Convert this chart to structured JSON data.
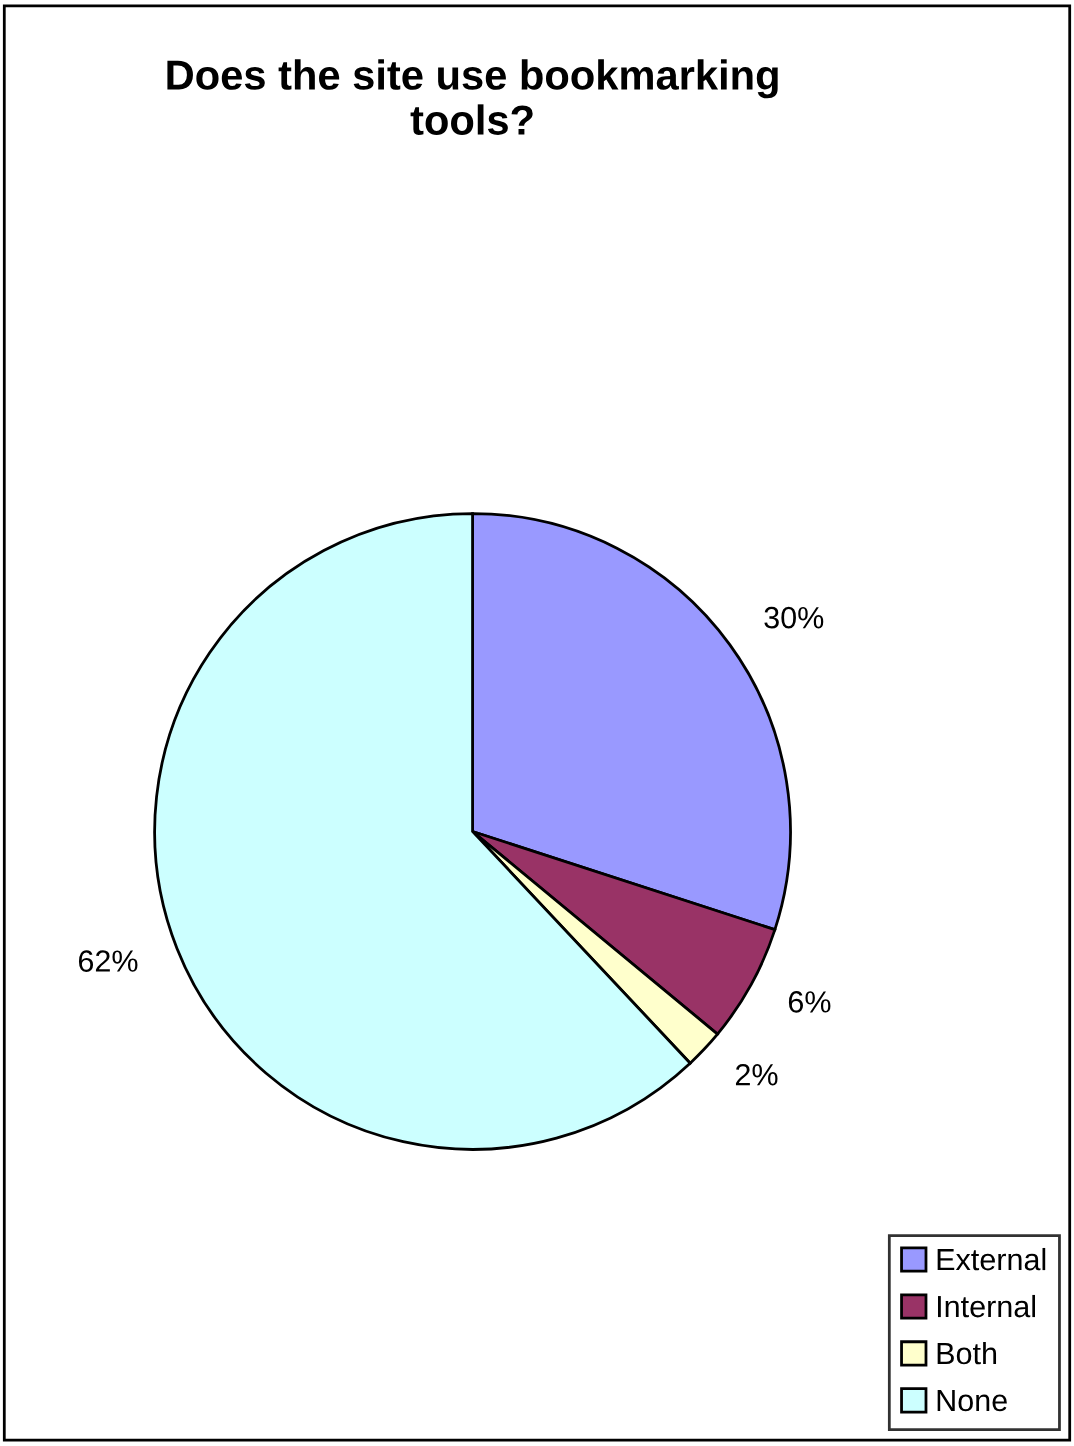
{
  "chart_data": {
    "type": "pie",
    "title": "Does the site use bookmarking tools?",
    "categories": [
      "External",
      "Internal",
      "Both",
      "None"
    ],
    "values": [
      30,
      6,
      2,
      62
    ],
    "value_labels": [
      "30%",
      "6%",
      "2%",
      "62%"
    ],
    "colors": [
      "#9999ff",
      "#993366",
      "#ffffcc",
      "#ccffff"
    ],
    "legend": "bottom right"
  }
}
